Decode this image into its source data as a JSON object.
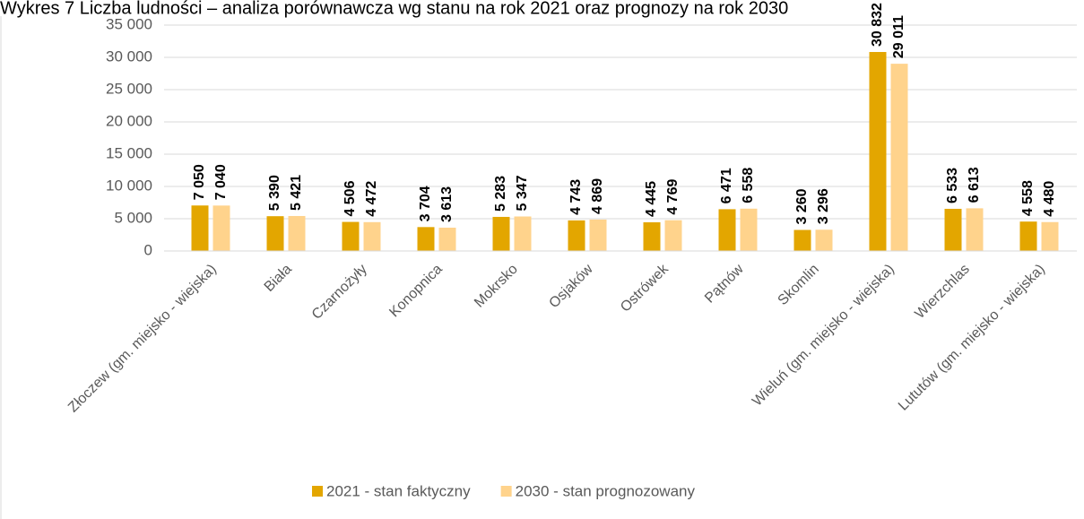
{
  "chart_data": {
    "type": "bar",
    "title": "Wykres 7 Liczba ludności – analiza porównawcza wg stanu na rok 2021 oraz prognozy na rok 2030",
    "categories": [
      "Złoczew (gm. miejsko - wiejska)",
      "Biała",
      "Czarnożyły",
      "Konopnica",
      "Mokrsko",
      "Osjaków",
      "Ostrówek",
      "Pątnów",
      "Skomlin",
      "Wieluń (gm. miejsko - wiejska)",
      "Wierzchlas",
      "Lututów (gm. miejsko - wiejska)"
    ],
    "series": [
      {
        "name": "2021 - stan faktyczny",
        "color": "#E3A600",
        "values": [
          7050,
          5390,
          4506,
          3704,
          5283,
          4743,
          4445,
          6471,
          3260,
          30832,
          6533,
          4558
        ],
        "value_labels": [
          "7 050",
          "5 390",
          "4 506",
          "3 704",
          "5 283",
          "4 743",
          "4 445",
          "6 471",
          "3 260",
          "30 832",
          "6 533",
          "4 558"
        ]
      },
      {
        "name": "2030 - stan prognozowany",
        "color": "#FFD38C",
        "values": [
          7040,
          5421,
          4472,
          3613,
          5347,
          4869,
          4769,
          6558,
          3296,
          29011,
          6613,
          4480
        ],
        "value_labels": [
          "7 040",
          "5 421",
          "4 472",
          "3 613",
          "5 347",
          "4 869",
          "4 769",
          "6 558",
          "3 296",
          "29 011",
          "6 613",
          "4 480"
        ]
      }
    ],
    "ylim": [
      0,
      35000
    ],
    "yticks": [
      0,
      {
        "value": 5000,
        "label": "5 000"
      },
      {
        "value": 10000,
        "label": "10 000"
      },
      {
        "value": 15000,
        "label": "15 000"
      },
      {
        "value": 20000,
        "label": "20 000"
      },
      {
        "value": 25000,
        "label": "25 000"
      },
      {
        "value": 30000,
        "label": "30 000"
      },
      {
        "value": 35000,
        "label": "35 000"
      }
    ],
    "grid": true,
    "legend": "bottom"
  }
}
